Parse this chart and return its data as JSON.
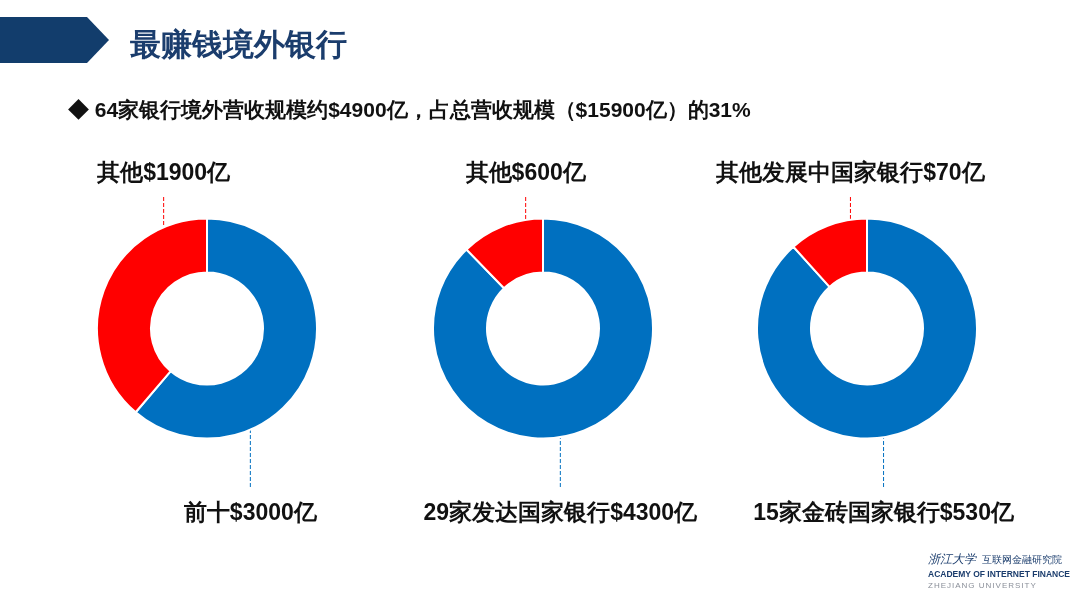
{
  "chart_data": [
    {
      "type": "other",
      "title": "最赚钱境外银行",
      "subtitle": "◆ 64家银行境外营收规模约$4900亿，占总营收规模（$15900亿）的31%"
    },
    {
      "type": "donut",
      "categories": [
        "前十$3000亿",
        "其他$1900亿"
      ],
      "values": [
        3000,
        1900
      ],
      "colors": [
        "#0070c0",
        "#ff0000"
      ]
    },
    {
      "type": "donut",
      "categories": [
        "29家发达国家银行$4300亿",
        "其他$600亿"
      ],
      "values": [
        4300,
        600
      ],
      "colors": [
        "#0070c0",
        "#ff0000"
      ]
    },
    {
      "type": "donut",
      "categories": [
        "15家金砖国家银行$530亿",
        "其他发展中国家银行$70亿"
      ],
      "values": [
        530,
        70
      ],
      "colors": [
        "#0070c0",
        "#ff0000"
      ]
    },
    {
      "type": "other",
      "annotations": [
        "浙江大学",
        "互联网金融研究院",
        "ACADEMY OF INTERNET FINANCE",
        "ZHEJIANG UNIVERSITY"
      ]
    }
  ]
}
